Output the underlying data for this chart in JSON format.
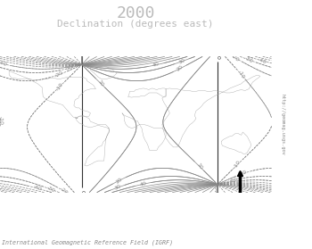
{
  "title_line1": "2000",
  "title_line2": "Declination (degrees east)",
  "footer": "International Geomagnetic Reference Field (IGRF)",
  "url_text": "http://geomag.usgs.gov",
  "background_color": "#ffffff",
  "title_color": "#bbbbbb",
  "contour_color": "#888888",
  "contour_color_dark": "#333333",
  "year": 2000,
  "lon_min": -180,
  "lon_max": 180,
  "lat_min": -90,
  "lat_max": 90,
  "pole_north_lat": 79.5,
  "pole_north_lon": -71.5,
  "pole_south_lat": -79.5,
  "pole_south_lon": 108.5
}
